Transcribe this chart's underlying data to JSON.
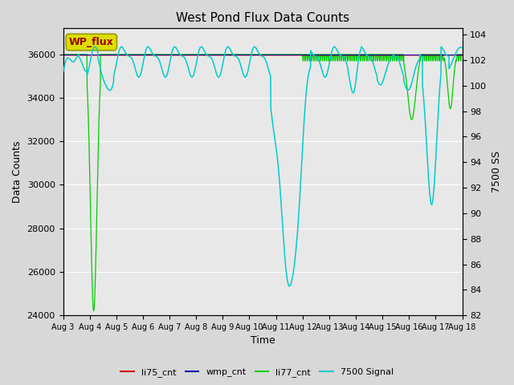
{
  "title": "West Pond Flux Data Counts",
  "xlabel": "Time",
  "ylabel_left": "Data Counts",
  "ylabel_right": "7500 SS",
  "ylim_left": [
    24000,
    37200
  ],
  "ylim_right": [
    82,
    104.5
  ],
  "yticks_left": [
    24000,
    26000,
    28000,
    30000,
    32000,
    34000,
    36000
  ],
  "yticks_right": [
    82,
    84,
    86,
    88,
    90,
    92,
    94,
    96,
    98,
    100,
    102,
    104
  ],
  "xtick_labels": [
    "Aug 3",
    "Aug 4",
    "Aug 5",
    "Aug 6",
    "Aug 7",
    "Aug 8",
    "Aug 9",
    "Aug 10",
    "Aug 11",
    "Aug 12",
    "Aug 13",
    "Aug 14",
    "Aug 15",
    "Aug 16",
    "Aug 17",
    "Aug 18"
  ],
  "bg_color": "#d8d8d8",
  "plot_bg_color": "#e8e8e8",
  "annotation_box_text": "WP_flux",
  "annotation_box_color": "#dddd00",
  "annotation_box_text_color": "#990000"
}
